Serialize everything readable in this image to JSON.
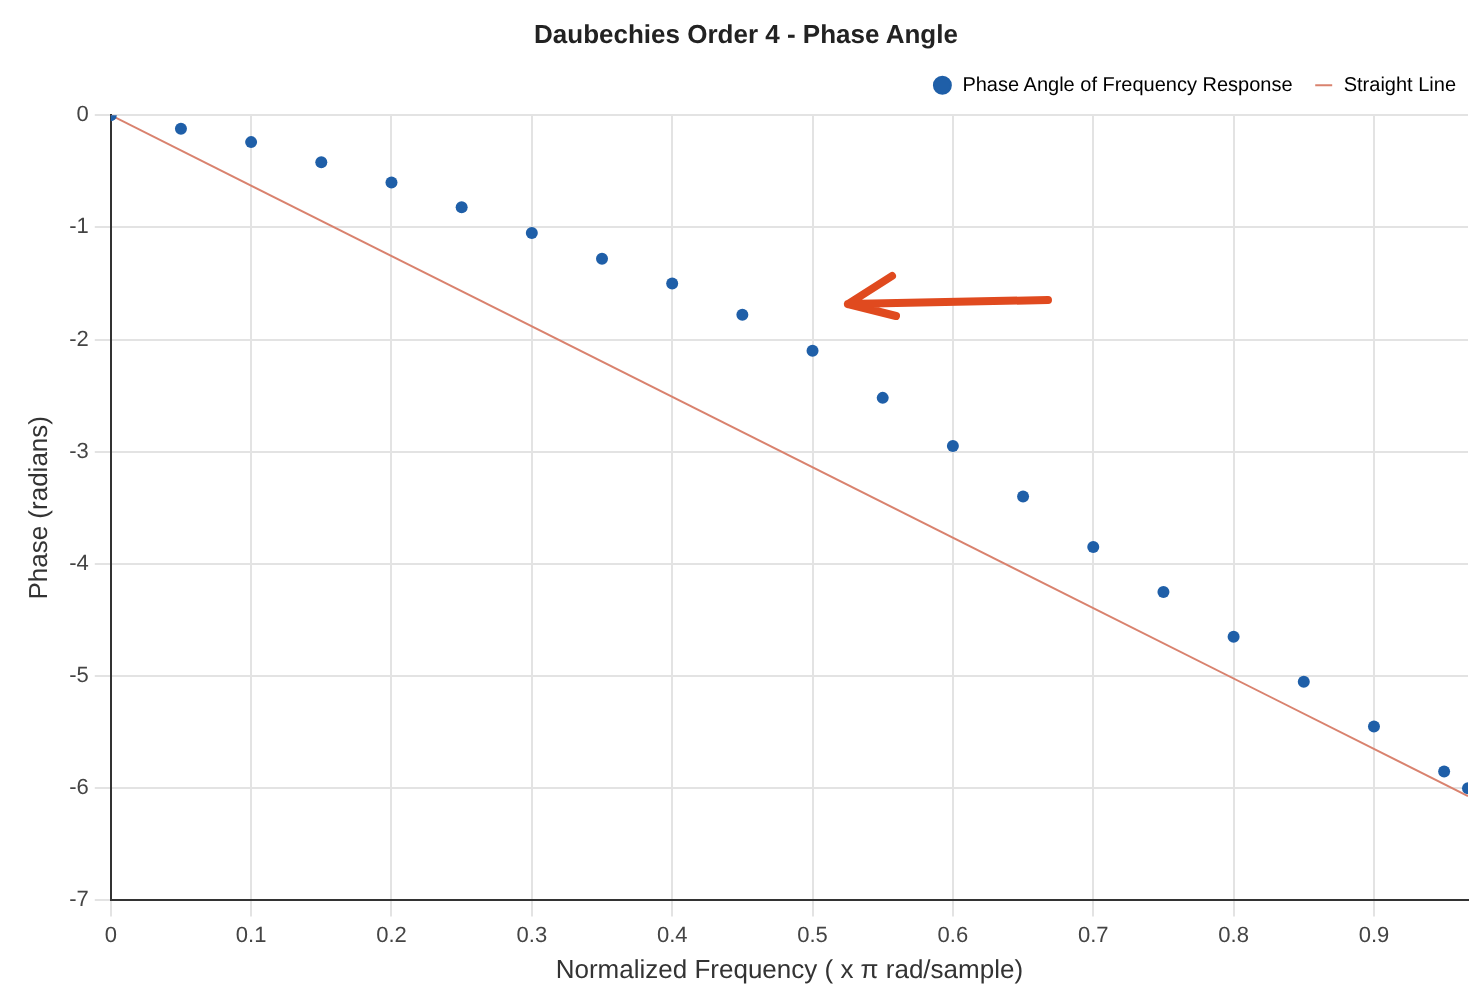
{
  "chart_data": {
    "type": "line",
    "title": "Daubechies Order 4 - Phase Angle",
    "xlabel": "Normalized Frequency ( x π rad/sample)",
    "ylabel": "Phase (radians)",
    "xlim": [
      0,
      0.967
    ],
    "xticks": [
      0,
      0.1,
      0.2,
      0.3,
      0.4,
      0.5,
      0.6,
      0.7,
      0.8,
      0.9
    ],
    "ylim": [
      -7,
      0
    ],
    "yticks": [
      -7,
      -6,
      -5,
      -4,
      -3,
      -2,
      -1,
      0
    ],
    "grid": true,
    "legend": "top right",
    "series": [
      {
        "name": "Phase Angle of Frequency Response",
        "type": "scatter",
        "marker": "circle",
        "color": "#1f5fa8",
        "x": [
          0,
          0.05,
          0.1,
          0.15,
          0.2,
          0.25,
          0.3,
          0.35,
          0.4,
          0.45,
          0.5,
          0.55,
          0.6,
          0.65,
          0.7,
          0.75,
          0.8,
          0.85,
          0.9,
          0.95,
          0.967
        ],
        "values": [
          0,
          -0.12,
          -0.24,
          -0.42,
          -0.6,
          -0.82,
          -1.05,
          -1.28,
          -1.5,
          -1.78,
          -2.1,
          -2.52,
          -2.95,
          -3.4,
          -3.85,
          -4.25,
          -4.65,
          -5.05,
          -5.45,
          -5.85,
          -6.0
        ]
      },
      {
        "name": "Straight Line",
        "marker": "none",
        "line_style": "solid",
        "color": "#d9826e",
        "x": [
          0,
          0.967
        ],
        "values": [
          0,
          -6.07
        ]
      }
    ]
  }
}
